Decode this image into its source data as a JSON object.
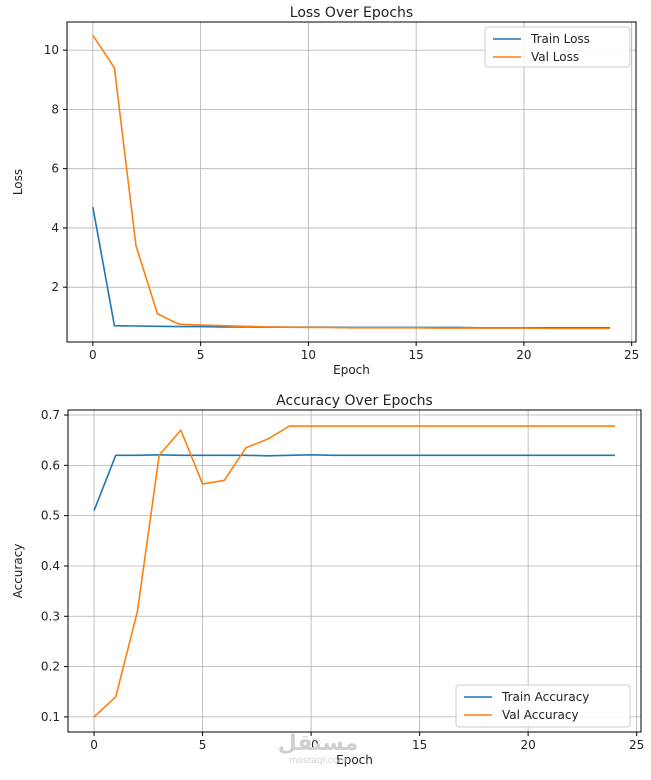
{
  "chart_data": [
    {
      "type": "line",
      "title": "Loss Over Epochs",
      "xlabel": "Epoch",
      "ylabel": "Loss",
      "xlim": [
        -1.2,
        25.2
      ],
      "ylim": [
        0.15,
        10.95
      ],
      "xticks": [
        0,
        5,
        10,
        15,
        20,
        25
      ],
      "yticks": [
        2,
        4,
        6,
        8,
        10
      ],
      "grid": true,
      "legend_position": "top-right",
      "x": [
        0,
        1,
        2,
        3,
        4,
        5,
        6,
        7,
        8,
        9,
        10,
        11,
        12,
        13,
        14,
        15,
        16,
        17,
        18,
        19,
        20,
        21,
        22,
        23,
        24
      ],
      "series": [
        {
          "name": "Train Loss",
          "color": "#1f77b4",
          "values": [
            4.7,
            0.7,
            0.69,
            0.68,
            0.67,
            0.67,
            0.66,
            0.66,
            0.65,
            0.65,
            0.65,
            0.65,
            0.64,
            0.64,
            0.64,
            0.64,
            0.64,
            0.64,
            0.63,
            0.63,
            0.63,
            0.63,
            0.63,
            0.63,
            0.63
          ]
        },
        {
          "name": "Val Loss",
          "color": "#ff7f0e",
          "values": [
            10.5,
            9.4,
            3.4,
            1.1,
            0.75,
            0.72,
            0.7,
            0.68,
            0.66,
            0.65,
            0.64,
            0.64,
            0.63,
            0.63,
            0.63,
            0.63,
            0.62,
            0.62,
            0.62,
            0.62,
            0.62,
            0.61,
            0.61,
            0.61,
            0.61
          ]
        }
      ]
    },
    {
      "type": "line",
      "title": "Accuracy Over Epochs",
      "xlabel": "Epoch",
      "ylabel": "Accuracy",
      "xlim": [
        -1.2,
        25.2
      ],
      "ylim": [
        0.07,
        0.71
      ],
      "xticks": [
        0,
        5,
        10,
        15,
        20,
        25
      ],
      "yticks": [
        0.1,
        0.2,
        0.3,
        0.4,
        0.5,
        0.6,
        0.7
      ],
      "grid": true,
      "legend_position": "bottom-right",
      "x": [
        0,
        1,
        2,
        3,
        4,
        5,
        6,
        7,
        8,
        9,
        10,
        11,
        12,
        13,
        14,
        15,
        16,
        17,
        18,
        19,
        20,
        21,
        22,
        23,
        24
      ],
      "series": [
        {
          "name": "Train Accuracy",
          "color": "#1f77b4",
          "values": [
            0.51,
            0.62,
            0.62,
            0.621,
            0.62,
            0.62,
            0.62,
            0.62,
            0.619,
            0.62,
            0.621,
            0.62,
            0.62,
            0.62,
            0.62,
            0.62,
            0.62,
            0.62,
            0.62,
            0.62,
            0.62,
            0.62,
            0.62,
            0.62,
            0.62
          ]
        },
        {
          "name": "Val Accuracy",
          "color": "#ff7f0e",
          "values": [
            0.1,
            0.14,
            0.31,
            0.62,
            0.67,
            0.563,
            0.57,
            0.635,
            0.652,
            0.678,
            0.678,
            0.678,
            0.678,
            0.678,
            0.678,
            0.678,
            0.678,
            0.678,
            0.678,
            0.678,
            0.678,
            0.678,
            0.678,
            0.678,
            0.678
          ]
        }
      ]
    }
  ],
  "watermark": {
    "text": "مستقل",
    "subtext": "mostaql.com"
  }
}
